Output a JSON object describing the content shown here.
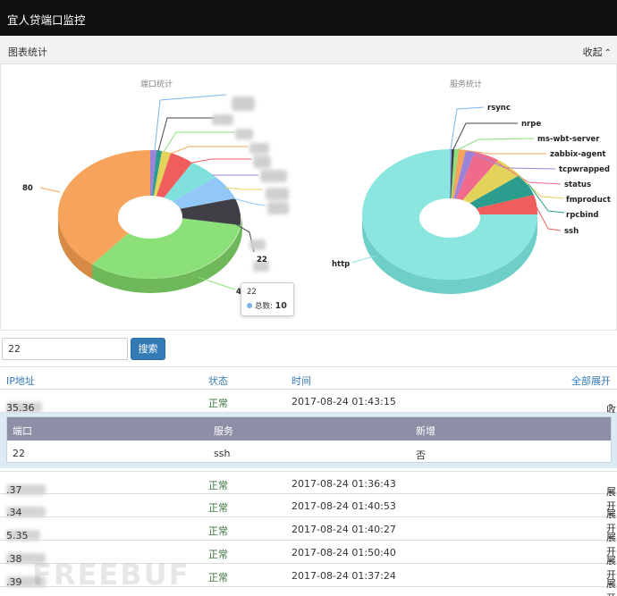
{
  "navbar": {
    "title": "宜人贷端口监控"
  },
  "panel": {
    "title": "图表统计",
    "collapse_label": "收起"
  },
  "port_chart": {
    "title": "端口统计",
    "labels": {
      "big": "80",
      "second": "443",
      "third": "22"
    },
    "tooltip": {
      "port": "22",
      "series_label": "总数:",
      "value": "10"
    }
  },
  "service_chart": {
    "title": "服务统计",
    "labels": [
      "rsync",
      "nrpe",
      "ms-wbt-server",
      "zabbix-agent",
      "tcpwrapped",
      "status",
      "fmproduct",
      "rpcbind",
      "ssh",
      "http"
    ]
  },
  "search": {
    "value": "22",
    "button_label": "搜索"
  },
  "table": {
    "headers": {
      "ip": "IP地址",
      "status": "状态",
      "time": "时间",
      "expand_all": "全部展开"
    },
    "rows": [
      {
        "ip": "35.36",
        "status": "正常",
        "time": "2017-08-24 01:43:15",
        "toggle": "收起"
      },
      {
        "ip": ".37",
        "status": "正常",
        "time": "2017-08-24 01:36:43",
        "toggle": "展开"
      },
      {
        "ip": ".34",
        "status": "正常",
        "time": "2017-08-24 01:40:53",
        "toggle": "展开"
      },
      {
        "ip": "5.35",
        "status": "正常",
        "time": "2017-08-24 01:40:27",
        "toggle": "展开"
      },
      {
        "ip": ".38",
        "status": "正常",
        "time": "2017-08-24 01:50:40",
        "toggle": "展开"
      },
      {
        "ip": ".39",
        "status": "正常",
        "time": "2017-08-24 01:37:24",
        "toggle": "展开"
      }
    ],
    "detail": {
      "headers": {
        "port": "端口",
        "service": "服务",
        "new": "新增"
      },
      "row": {
        "port": "22",
        "service": "ssh",
        "new": "否"
      }
    }
  },
  "watermark": "FREEBUF",
  "colors": {
    "navbar": "#101010",
    "link": "#337ab7",
    "status_ok": "#3c763d",
    "detail_header": "#8e8ea7",
    "button": "#337ab7"
  }
}
